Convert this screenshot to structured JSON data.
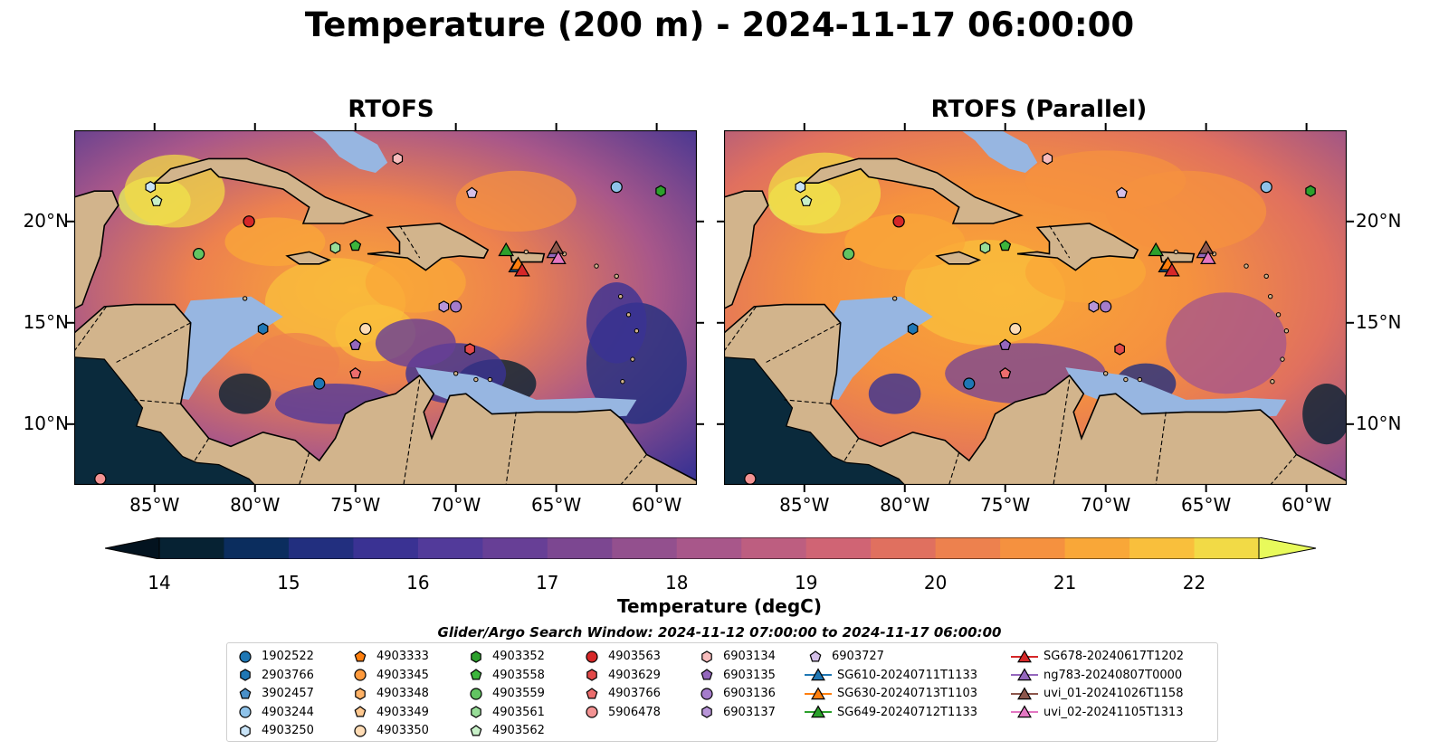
{
  "title": "Temperature (200 m) - 2024-11-17 06:00:00",
  "panels": [
    {
      "title": "RTOFS",
      "variant": "rtofs"
    },
    {
      "title": "RTOFS (Parallel)",
      "variant": "parallel"
    }
  ],
  "map_extent": {
    "lon_min": -89.0,
    "lon_max": -58.0,
    "lat_min": 7.0,
    "lat_max": 24.5
  },
  "lon_ticks": [
    {
      "v": -85,
      "label": "85°W"
    },
    {
      "v": -80,
      "label": "80°W"
    },
    {
      "v": -75,
      "label": "75°W"
    },
    {
      "v": -70,
      "label": "70°W"
    },
    {
      "v": -65,
      "label": "65°W"
    },
    {
      "v": -60,
      "label": "60°W"
    }
  ],
  "lat_ticks": [
    {
      "v": 20,
      "label": "20°N"
    },
    {
      "v": 15,
      "label": "15°N"
    },
    {
      "v": 10,
      "label": "10°N"
    }
  ],
  "colorbar": {
    "label": "Temperature (degC)",
    "min": 14,
    "max": 22,
    "step": 0.5,
    "ticks": [
      "14",
      "15",
      "16",
      "17",
      "18",
      "19",
      "20",
      "21",
      "22"
    ],
    "colors": [
      "#062233",
      "#0b2d5e",
      "#222f7f",
      "#3a3293",
      "#523a9a",
      "#673f96",
      "#7c4791",
      "#93508e",
      "#a8578a",
      "#bd5e80",
      "#d06474",
      "#e0705f",
      "#ed814e",
      "#f5913f",
      "#f9a738",
      "#f9bf3c",
      "#f2da46"
    ],
    "over_color": "#e8fa5b",
    "under_color": "#03131f"
  },
  "colors": {
    "land": "#d2b48c",
    "shallow": "#97b6e1",
    "ocean_warm": "#f28c3f",
    "ocean_cool": "#5b3b98",
    "coast": "#000000",
    "border": "#000000"
  },
  "search_window": "Glider/Argo Search Window: 2024-11-12 07:00:00 to 2024-11-17 06:00:00",
  "legend": [
    {
      "label": "1902522",
      "marker": "circle",
      "color": "#1f77b4"
    },
    {
      "label": "2903766",
      "marker": "hexagon",
      "color": "#1f77b4"
    },
    {
      "label": "3902457",
      "marker": "pentagon",
      "color": "#4a90c9"
    },
    {
      "label": "4903244",
      "marker": "circle",
      "color": "#8fc3ea"
    },
    {
      "label": "4903250",
      "marker": "hexagon",
      "color": "#c8e3f7"
    },
    {
      "label": "4903333",
      "marker": "pentagon",
      "color": "#ff7f0e"
    },
    {
      "label": "4903345",
      "marker": "circle",
      "color": "#ff9a3c"
    },
    {
      "label": "4903348",
      "marker": "hexagon",
      "color": "#ffb266"
    },
    {
      "label": "4903349",
      "marker": "pentagon",
      "color": "#ffc88f"
    },
    {
      "label": "4903350",
      "marker": "circle",
      "color": "#ffdcb5"
    },
    {
      "label": "4903352",
      "marker": "hexagon",
      "color": "#2ca02c"
    },
    {
      "label": "4903558",
      "marker": "pentagon",
      "color": "#3cb53c"
    },
    {
      "label": "4903559",
      "marker": "circle",
      "color": "#62c462"
    },
    {
      "label": "4903561",
      "marker": "hexagon",
      "color": "#98dd98"
    },
    {
      "label": "4903562",
      "marker": "pentagon",
      "color": "#c8f0c8"
    },
    {
      "label": "4903563",
      "marker": "circle",
      "color": "#d62728"
    },
    {
      "label": "4903629",
      "marker": "hexagon",
      "color": "#e34a4a"
    },
    {
      "label": "4903766",
      "marker": "pentagon",
      "color": "#ec6d6d"
    },
    {
      "label": "5906478",
      "marker": "circle",
      "color": "#f39393"
    },
    {
      "label": "6903134",
      "marker": "hexagon",
      "color": "#f7bcbc"
    },
    {
      "label": "6903135",
      "marker": "pentagon",
      "color": "#9467bd"
    },
    {
      "label": "6903136",
      "marker": "circle",
      "color": "#a57ccb"
    },
    {
      "label": "6903137",
      "marker": "hexagon",
      "color": "#b895d8"
    },
    {
      "label": "6903727",
      "marker": "pentagon",
      "color": "#d4bfe8"
    },
    {
      "label": "SG610-20240711T1133",
      "marker": "triangle",
      "color": "#1f77b4"
    },
    {
      "label": "SG630-20240713T1103",
      "marker": "triangle",
      "color": "#ff7f0e"
    },
    {
      "label": "SG649-20240712T1133",
      "marker": "triangle",
      "color": "#2ca02c"
    },
    {
      "label": "SG678-20240617T1202",
      "marker": "triangle",
      "color": "#d62728"
    },
    {
      "label": "ng783-20240807T0000",
      "marker": "triangle",
      "color": "#9467bd"
    },
    {
      "label": "uvi_01-20241026T1158",
      "marker": "triangle",
      "color": "#8c564b"
    },
    {
      "label": "uvi_02-20241105T1313",
      "marker": "triangle",
      "color": "#e377c2"
    }
  ],
  "platforms": [
    {
      "id": "1902522",
      "lon": -76.8,
      "lat": 12.0
    },
    {
      "id": "2903766",
      "lon": -79.6,
      "lat": 14.7
    },
    {
      "id": "3902457",
      "lon": -75.0,
      "lat": 13.9
    },
    {
      "id": "4903244",
      "lon": -62.0,
      "lat": 21.7
    },
    {
      "id": "4903250",
      "lon": -85.2,
      "lat": 21.7
    },
    {
      "id": "4903333",
      "lon": -75.0,
      "lat": 18.8
    },
    {
      "id": "4903345",
      "lon": -80.3,
      "lat": 20.0
    },
    {
      "id": "4903348",
      "lon": -69.3,
      "lat": 13.7
    },
    {
      "id": "4903349",
      "lon": -75.0,
      "lat": 12.5
    },
    {
      "id": "4903350",
      "lon": -74.5,
      "lat": 14.7
    },
    {
      "id": "4903352",
      "lon": -59.8,
      "lat": 21.5
    },
    {
      "id": "4903558",
      "lon": -75.0,
      "lat": 18.8
    },
    {
      "id": "4903559",
      "lon": -82.8,
      "lat": 18.4
    },
    {
      "id": "4903561",
      "lon": -76.0,
      "lat": 18.7
    },
    {
      "id": "4903562",
      "lon": -84.9,
      "lat": 21.0
    },
    {
      "id": "4903563",
      "lon": -80.3,
      "lat": 20.0
    },
    {
      "id": "4903629",
      "lon": -69.3,
      "lat": 13.7
    },
    {
      "id": "4903766",
      "lon": -75.0,
      "lat": 12.5
    },
    {
      "id": "5906478",
      "lon": -87.7,
      "lat": 7.3
    },
    {
      "id": "6903134",
      "lon": -72.9,
      "lat": 23.1
    },
    {
      "id": "6903135",
      "lon": -75.0,
      "lat": 13.9
    },
    {
      "id": "6903136",
      "lon": -70.0,
      "lat": 15.8
    },
    {
      "id": "6903137",
      "lon": -70.6,
      "lat": 15.8
    },
    {
      "id": "6903727",
      "lon": -69.2,
      "lat": 21.4
    },
    {
      "id": "SG610-20240711T1133",
      "lon": -67.0,
      "lat": 17.8
    },
    {
      "id": "SG630-20240713T1103",
      "lon": -66.9,
      "lat": 17.9
    },
    {
      "id": "SG649-20240712T1133",
      "lon": -67.5,
      "lat": 18.6
    },
    {
      "id": "SG678-20240617T1202",
      "lon": -66.7,
      "lat": 17.6
    },
    {
      "id": "ng783-20240807T0000",
      "lon": -65.1,
      "lat": 18.5
    },
    {
      "id": "uvi_01-20241026T1158",
      "lon": -65.0,
      "lat": 18.7
    },
    {
      "id": "uvi_02-20241105T1313",
      "lon": -64.9,
      "lat": 18.2
    }
  ]
}
